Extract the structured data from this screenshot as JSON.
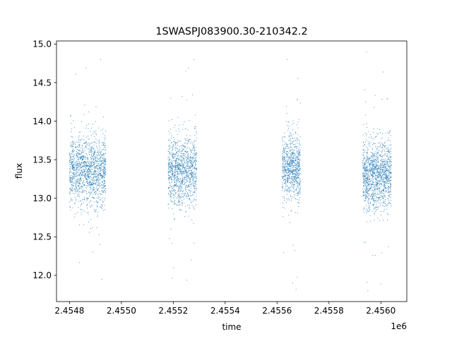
{
  "chart_data": {
    "type": "scatter",
    "title": "1SWASPJ083900.30-210342.2",
    "xlabel": "time",
    "ylabel": "flux",
    "x_offset_label": "1e6",
    "xlim": [
      2454750,
      2456100
    ],
    "ylim": [
      11.66,
      15.04
    ],
    "x_ticks": [
      2454800,
      2455000,
      2455200,
      2455400,
      2455600,
      2455800,
      2456000
    ],
    "x_tick_labels": [
      "2.4548",
      "2.4550",
      "2.4552",
      "2.4554",
      "2.4556",
      "2.4558",
      "2.4560"
    ],
    "y_ticks": [
      12.0,
      12.5,
      13.0,
      13.5,
      14.0,
      14.5,
      15.0
    ],
    "y_tick_labels": [
      "12.0",
      "12.5",
      "13.0",
      "13.5",
      "14.0",
      "14.5",
      "15.0"
    ],
    "grid": false,
    "marker_color": "#1f77b4",
    "seasons": [
      {
        "x_start": 2454800,
        "x_end": 2454940,
        "median": 13.35,
        "spread": 0.22,
        "n": 1400,
        "sample_points": [
          [
            2454820,
            13.3
          ],
          [
            2454850,
            13.5
          ],
          [
            2454880,
            13.2
          ],
          [
            2454910,
            13.6
          ],
          [
            2454920,
            14.8
          ],
          [
            2454925,
            11.95
          ],
          [
            2454890,
            12.3
          ]
        ]
      },
      {
        "x_start": 2455180,
        "x_end": 2455290,
        "median": 13.35,
        "spread": 0.22,
        "n": 1100,
        "sample_points": [
          [
            2455190,
            13.4
          ],
          [
            2455230,
            13.2
          ],
          [
            2455260,
            13.5
          ],
          [
            2455280,
            14.8
          ],
          [
            2455270,
            12.2
          ],
          [
            2455200,
            12.1
          ]
        ]
      },
      {
        "x_start": 2455620,
        "x_end": 2455690,
        "median": 13.4,
        "spread": 0.2,
        "n": 800,
        "sample_points": [
          [
            2455630,
            13.4
          ],
          [
            2455660,
            13.2
          ],
          [
            2455680,
            13.6
          ],
          [
            2455640,
            14.8
          ],
          [
            2455660,
            11.9
          ]
        ]
      },
      {
        "x_start": 2455930,
        "x_end": 2456040,
        "median": 13.3,
        "spread": 0.22,
        "n": 1300,
        "sample_points": [
          [
            2455940,
            13.3
          ],
          [
            2455980,
            13.5
          ],
          [
            2456010,
            13.1
          ],
          [
            2456030,
            13.6
          ],
          [
            2455945,
            14.9
          ],
          [
            2455950,
            11.8
          ]
        ]
      }
    ]
  }
}
